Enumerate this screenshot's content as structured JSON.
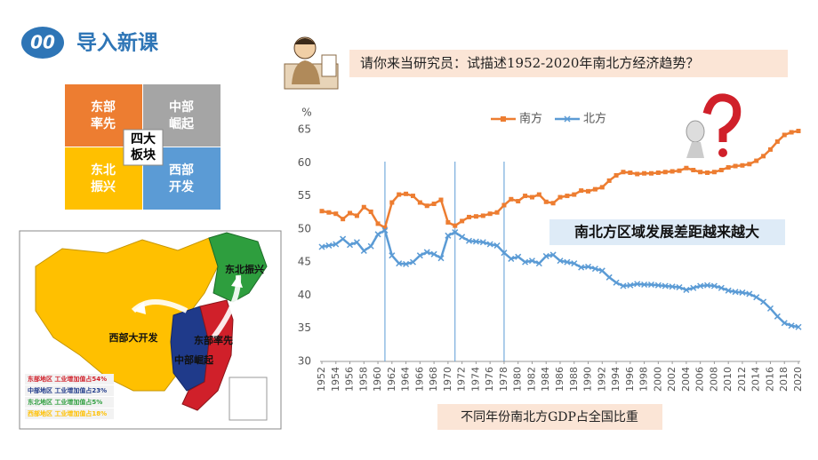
{
  "header": {
    "number": "00",
    "title": "导入新课"
  },
  "question": "请你来当研究员：试描述1952-2020年南北方经济趋势？",
  "blocks": {
    "center": [
      "四大",
      "板块"
    ],
    "cells": [
      [
        "东部",
        "率先"
      ],
      [
        "中部",
        "崛起"
      ],
      [
        "东北",
        "振兴"
      ],
      [
        "西部",
        "开发"
      ]
    ]
  },
  "map": {
    "labels": [
      "东北振兴",
      "西部大开发",
      "东部率先",
      "中部崛起"
    ],
    "legend": [
      "东部地区 工业增加值占54%",
      "中部地区 工业增加值占23%",
      "东北地区 工业增加值占5%",
      "西部地区 工业增加值占18%"
    ]
  },
  "chart_data": {
    "type": "line",
    "y_unit": "%",
    "annotation": "南北方区域发展差距越来越大",
    "caption": "不同年份南北方GDP占全国比重",
    "x": [
      1952,
      1953,
      1954,
      1955,
      1956,
      1957,
      1958,
      1959,
      1960,
      1961,
      1962,
      1963,
      1964,
      1965,
      1966,
      1967,
      1968,
      1969,
      1970,
      1971,
      1972,
      1973,
      1974,
      1975,
      1976,
      1977,
      1978,
      1979,
      1980,
      1981,
      1982,
      1983,
      1984,
      1985,
      1986,
      1987,
      1988,
      1989,
      1990,
      1991,
      1992,
      1993,
      1994,
      1995,
      1996,
      1997,
      1998,
      1999,
      2000,
      2001,
      2002,
      2003,
      2004,
      2005,
      2006,
      2007,
      2008,
      2009,
      2010,
      2011,
      2012,
      2013,
      2014,
      2015,
      2016,
      2017,
      2018,
      2019,
      2020
    ],
    "series": [
      {
        "name": "南方",
        "color": "#ED7D31",
        "marker": "square",
        "values": [
          52.7,
          52.5,
          52.3,
          51.5,
          52.4,
          52.0,
          53.3,
          52.6,
          50.8,
          50.2,
          54.0,
          55.2,
          55.3,
          55.0,
          54.0,
          53.5,
          53.8,
          54.4,
          51.0,
          50.5,
          51.2,
          51.8,
          51.9,
          52.0,
          52.3,
          52.5,
          53.6,
          54.5,
          54.2,
          55.0,
          54.8,
          55.2,
          54.1,
          53.9,
          54.8,
          55.0,
          55.2,
          55.8,
          55.7,
          56.0,
          56.3,
          57.3,
          58.1,
          58.6,
          58.5,
          58.3,
          58.4,
          58.4,
          58.5,
          58.6,
          58.7,
          58.8,
          59.2,
          58.9,
          58.6,
          58.5,
          58.6,
          58.9,
          59.3,
          59.5,
          59.6,
          59.8,
          60.3,
          61.0,
          62.0,
          63.2,
          64.2,
          64.6,
          64.8
        ]
      },
      {
        "name": "北方",
        "color": "#5B9BD5",
        "marker": "cross",
        "values": [
          47.3,
          47.5,
          47.7,
          48.5,
          47.6,
          48.0,
          46.7,
          47.4,
          49.2,
          49.8,
          46.0,
          44.8,
          44.7,
          45.0,
          46.0,
          46.5,
          46.2,
          45.6,
          49.0,
          49.5,
          48.8,
          48.2,
          48.1,
          48.0,
          47.7,
          47.5,
          46.4,
          45.5,
          45.8,
          45.0,
          45.2,
          44.8,
          45.9,
          46.1,
          45.2,
          45.0,
          44.8,
          44.2,
          44.3,
          44.0,
          43.7,
          42.7,
          41.9,
          41.4,
          41.5,
          41.7,
          41.6,
          41.6,
          41.5,
          41.4,
          41.3,
          41.2,
          40.8,
          41.1,
          41.4,
          41.5,
          41.4,
          41.1,
          40.7,
          40.5,
          40.4,
          40.2,
          39.7,
          39.0,
          38.0,
          36.8,
          35.8,
          35.4,
          35.2
        ]
      }
    ],
    "xlim": [
      1952,
      2020
    ],
    "xticks": [
      1952,
      1954,
      1956,
      1958,
      1960,
      1962,
      1964,
      1966,
      1968,
      1970,
      1972,
      1974,
      1976,
      1978,
      1980,
      1982,
      1984,
      1986,
      1988,
      1990,
      1992,
      1994,
      1996,
      1998,
      2000,
      2002,
      2004,
      2006,
      2008,
      2010,
      2012,
      2014,
      2016,
      2018,
      2020
    ],
    "ylim": [
      30,
      65
    ],
    "yticks": [
      30,
      35,
      40,
      45,
      50,
      55,
      60,
      65
    ],
    "reference_lines": [
      1961,
      1971,
      1978
    ],
    "grid": false,
    "legend": "top"
  }
}
